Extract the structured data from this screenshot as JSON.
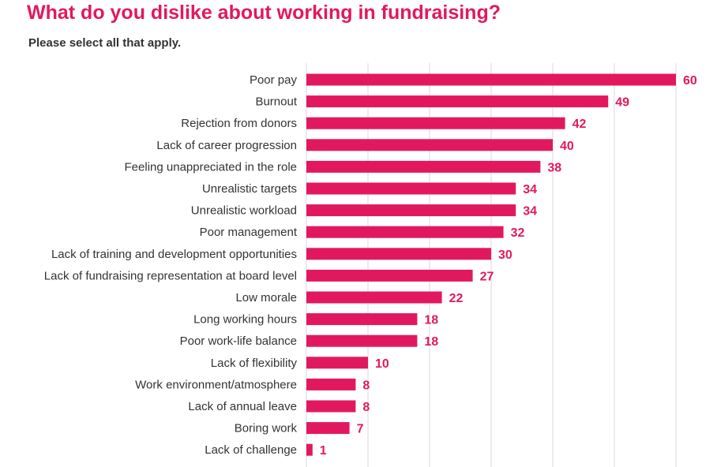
{
  "header": {
    "title": "What do you dislike about working in fundraising?",
    "subtitle": "Please select all that apply."
  },
  "colors": {
    "bar": "#e2185f",
    "title": "#e2185f",
    "value_label": "#e2185f",
    "category_label": "#333333",
    "grid": "#d9d9d9"
  },
  "chart_data": {
    "type": "bar",
    "orientation": "horizontal",
    "title": "What do you dislike about working in fundraising?",
    "subtitle": "Please select all that apply.",
    "xlabel": "",
    "ylabel": "",
    "xlim": [
      0,
      60
    ],
    "grid": true,
    "gridline_values": [
      0,
      10,
      20,
      30,
      40,
      50,
      60
    ],
    "categories": [
      "Poor pay",
      "Burnout",
      "Rejection from donors",
      "Lack of career progression",
      "Feeling unappreciated in the role",
      "Unrealistic targets",
      "Unrealistic workload",
      "Poor management",
      "Lack of training and development opportunities",
      "Lack of fundraising representation at board level",
      "Low morale",
      "Long working hours",
      "Poor work-life balance",
      "Lack of flexibility",
      "Work environment/atmosphere",
      "Lack of annual leave",
      "Boring work",
      "Lack of challenge"
    ],
    "values": [
      60,
      49,
      42,
      40,
      38,
      34,
      34,
      32,
      30,
      27,
      22,
      18,
      18,
      10,
      8,
      8,
      7,
      1
    ]
  }
}
